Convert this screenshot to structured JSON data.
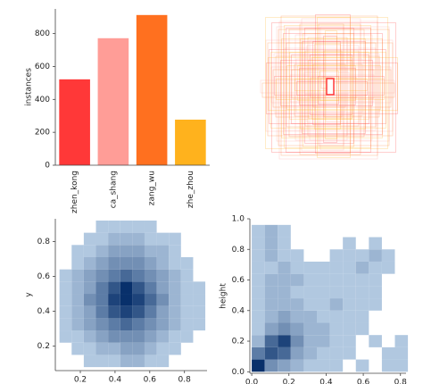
{
  "chart_data": [
    {
      "type": "bar",
      "ylabel": "instances",
      "categories": [
        "zhen_kong",
        "ca_shang",
        "zang_wu",
        "zhe_zhou"
      ],
      "values": [
        522,
        772,
        913,
        277
      ],
      "colors": [
        "#ff3838",
        "#ff9d97",
        "#ff701f",
        "#ffb21d"
      ],
      "ylim": [
        0,
        950
      ],
      "yticks": [
        0,
        200,
        400,
        600,
        800
      ]
    },
    {
      "type": "hist2d",
      "ylabel": "y",
      "x_bins": [
        0.08,
        0.15,
        0.22,
        0.29,
        0.36,
        0.43,
        0.5,
        0.57,
        0.64,
        0.71,
        0.78,
        0.85,
        0.92
      ],
      "y_bins": [
        0.08,
        0.15,
        0.22,
        0.29,
        0.36,
        0.43,
        0.5,
        0.57,
        0.64,
        0.71,
        0.78,
        0.85,
        0.92
      ],
      "counts": [
        [
          0,
          0,
          1,
          1,
          1,
          2,
          2,
          1,
          1,
          0,
          0,
          0
        ],
        [
          0,
          1,
          1,
          2,
          2,
          3,
          3,
          2,
          1,
          1,
          0,
          0
        ],
        [
          1,
          1,
          2,
          3,
          4,
          4,
          4,
          3,
          2,
          1,
          1,
          0
        ],
        [
          1,
          2,
          3,
          4,
          5,
          6,
          5,
          4,
          3,
          2,
          1,
          1
        ],
        [
          1,
          2,
          3,
          5,
          7,
          8,
          7,
          5,
          3,
          2,
          1,
          1
        ],
        [
          1,
          2,
          4,
          5,
          8,
          9,
          8,
          6,
          4,
          2,
          1,
          1
        ],
        [
          1,
          2,
          3,
          5,
          7,
          9,
          7,
          5,
          3,
          2,
          1,
          1
        ],
        [
          1,
          2,
          3,
          4,
          5,
          6,
          5,
          4,
          3,
          2,
          1,
          0
        ],
        [
          0,
          1,
          2,
          3,
          4,
          4,
          4,
          3,
          2,
          1,
          1,
          0
        ],
        [
          0,
          1,
          1,
          2,
          3,
          3,
          3,
          2,
          2,
          1,
          0,
          0
        ],
        [
          0,
          0,
          1,
          1,
          2,
          2,
          2,
          1,
          1,
          1,
          0,
          0
        ],
        [
          0,
          0,
          0,
          1,
          1,
          1,
          1,
          1,
          0,
          0,
          0,
          0
        ]
      ],
      "xlim": [
        0.056,
        0.93
      ],
      "ylim": [
        0.06,
        0.93
      ],
      "xticks": [
        0.2,
        0.4,
        0.6,
        0.8
      ],
      "yticks": [
        0.2,
        0.4,
        0.6,
        0.8
      ]
    },
    {
      "type": "hist2d",
      "ylabel": "height",
      "x_bins": [
        0,
        0.07,
        0.14,
        0.21,
        0.28,
        0.35,
        0.42,
        0.49,
        0.56,
        0.63,
        0.7,
        0.77,
        0.84
      ],
      "y_bins": [
        0,
        0.08,
        0.16,
        0.24,
        0.32,
        0.4,
        0.48,
        0.56,
        0.64,
        0.72,
        0.8,
        0.88,
        0.96
      ],
      "counts": [
        [
          9,
          4,
          3,
          2,
          1,
          1,
          1,
          0,
          1,
          0,
          1,
          1
        ],
        [
          5,
          7,
          6,
          3,
          2,
          1,
          1,
          1,
          0,
          0,
          1,
          1
        ],
        [
          2,
          6,
          8,
          4,
          2,
          2,
          1,
          1,
          0,
          1,
          0,
          1
        ],
        [
          1,
          3,
          4,
          3,
          2,
          2,
          1,
          1,
          1,
          0,
          0,
          0
        ],
        [
          1,
          2,
          3,
          2,
          2,
          1,
          1,
          1,
          1,
          0,
          0,
          0
        ],
        [
          1,
          2,
          2,
          2,
          1,
          1,
          2,
          1,
          1,
          1,
          0,
          0
        ],
        [
          1,
          2,
          2,
          1,
          1,
          1,
          1,
          1,
          1,
          1,
          0,
          0
        ],
        [
          1,
          2,
          2,
          2,
          1,
          1,
          1,
          1,
          1,
          1,
          0,
          0
        ],
        [
          1,
          1,
          2,
          1,
          1,
          1,
          1,
          1,
          2,
          1,
          1,
          0
        ],
        [
          1,
          2,
          1,
          1,
          0,
          0,
          1,
          1,
          1,
          2,
          1,
          0
        ],
        [
          1,
          2,
          1,
          0,
          0,
          0,
          0,
          1,
          0,
          1,
          0,
          0
        ],
        [
          1,
          2,
          1,
          0,
          0,
          0,
          0,
          0,
          0,
          0,
          0,
          0
        ]
      ],
      "xlim": [
        -0.01,
        0.83
      ],
      "ylim": [
        -0.01,
        1.0
      ],
      "xticks": [
        {
          "value": 0,
          "label": "0.0"
        },
        0.2,
        0.4,
        0.6,
        0.8
      ],
      "yticks": [
        {
          "value": 0,
          "label": "0.0"
        },
        0.2,
        0.4,
        0.6,
        0.8,
        {
          "value": 1,
          "label": "1.0"
        }
      ]
    }
  ]
}
